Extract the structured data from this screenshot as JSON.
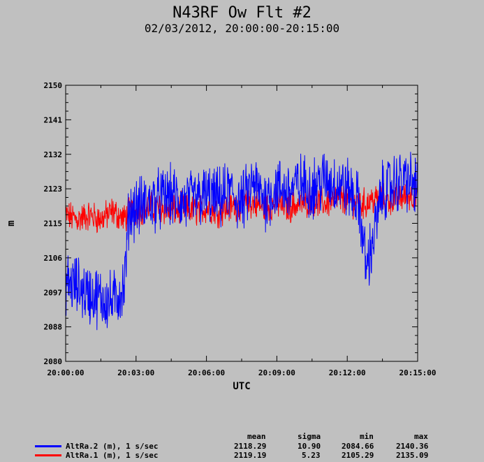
{
  "title": "N43RF Ow Flt #2",
  "subtitle": "02/03/2012, 20:00:00-20:15:00",
  "chart_data": {
    "type": "line",
    "xlabel": "UTC",
    "ylabel": "m",
    "x_ticks": [
      "20:00:00",
      "20:03:00",
      "20:06:00",
      "20:09:00",
      "20:12:00",
      "20:15:00"
    ],
    "y_ticks": [
      "2150",
      "2141",
      "2132",
      "2123",
      "2115",
      "2106",
      "2097",
      "2088",
      "2080"
    ],
    "ylim": [
      2080,
      2150
    ],
    "xlim_minutes": [
      0,
      15
    ],
    "grid": false,
    "series_note_approx_minutes": [
      0,
      0.5,
      1,
      1.5,
      2,
      2.5,
      2.7,
      3,
      3.5,
      4,
      4.5,
      5,
      5.5,
      6,
      6.5,
      7,
      7.5,
      8,
      8.5,
      9,
      9.5,
      10,
      10.5,
      11,
      11.5,
      12,
      12.5,
      12.8,
      13,
      13.5,
      14,
      14.5,
      15
    ],
    "series": [
      {
        "name": "AltRa.2 (m), 1 s/sec",
        "color": "#0000ff",
        "values": [
          2100,
          2099,
          2097,
          2096,
          2095,
          2099,
          2118,
          2119,
          2120,
          2121,
          2122,
          2120,
          2121,
          2122,
          2121,
          2123,
          2120,
          2125,
          2121,
          2124,
          2123,
          2125,
          2124,
          2126,
          2125,
          2124,
          2120,
          2104,
          2108,
          2123,
          2125,
          2126,
          2124
        ]
      },
      {
        "name": "AltRa.1 (m), 1 s/sec",
        "color": "#ff0000",
        "values": [
          2117,
          2116,
          2117,
          2116,
          2118,
          2116,
          2118,
          2118,
          2119,
          2119,
          2118,
          2119,
          2118,
          2119,
          2118,
          2119,
          2120,
          2120,
          2119,
          2120,
          2119,
          2120,
          2121,
          2120,
          2121,
          2121,
          2120,
          2120,
          2121,
          2121,
          2121,
          2122,
          2122
        ]
      }
    ],
    "stats_headers": [
      "mean",
      "sigma",
      "min",
      "max"
    ],
    "stats": [
      [
        "2118.29",
        "10.90",
        "2084.66",
        "2140.36"
      ],
      [
        "2119.19",
        "5.23",
        "2105.29",
        "2135.09"
      ]
    ]
  }
}
